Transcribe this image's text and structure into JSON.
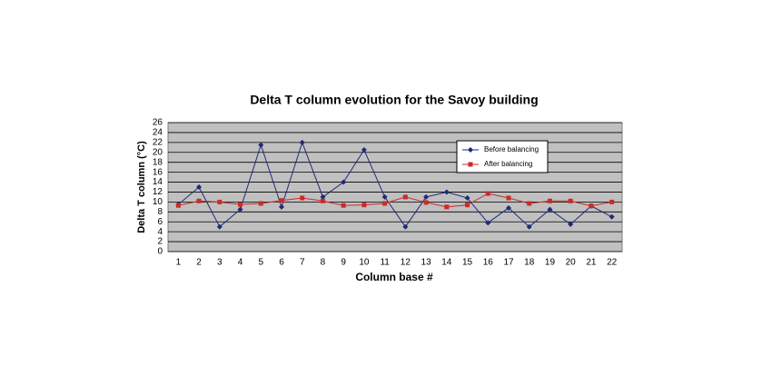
{
  "chart_data": {
    "type": "line",
    "title": "Delta T column evolution for the Savoy building",
    "x_label": "Column base #",
    "y_label": "Delta T column (°C)",
    "categories": [
      "1",
      "2",
      "3",
      "4",
      "5",
      "6",
      "7",
      "8",
      "9",
      "10",
      "11",
      "12",
      "13",
      "14",
      "15",
      "16",
      "17",
      "18",
      "19",
      "20",
      "21",
      "22"
    ],
    "series": [
      {
        "name": "Before balancing",
        "color": "#1f2a78",
        "marker": "diamond",
        "values": [
          9.5,
          13,
          5,
          8.5,
          21.5,
          9,
          22,
          11,
          14,
          20.5,
          11,
          5,
          11,
          12,
          10.8,
          5.8,
          8.8,
          5,
          8.5,
          5.5,
          9.2,
          7
        ]
      },
      {
        "name": "After balancing",
        "color": "#cc2a2a",
        "marker": "square",
        "values": [
          9.3,
          10.2,
          10,
          9.5,
          9.7,
          10.3,
          10.8,
          10.2,
          9.3,
          9.4,
          9.7,
          11,
          9.9,
          9,
          9.4,
          11.7,
          10.8,
          9.7,
          10.2,
          10.2,
          9.2,
          10
        ]
      }
    ],
    "ylim": [
      0,
      26
    ],
    "yticks": [
      0,
      2,
      4,
      6,
      8,
      10,
      12,
      14,
      16,
      18,
      20,
      22,
      24,
      26
    ],
    "grid": true
  }
}
